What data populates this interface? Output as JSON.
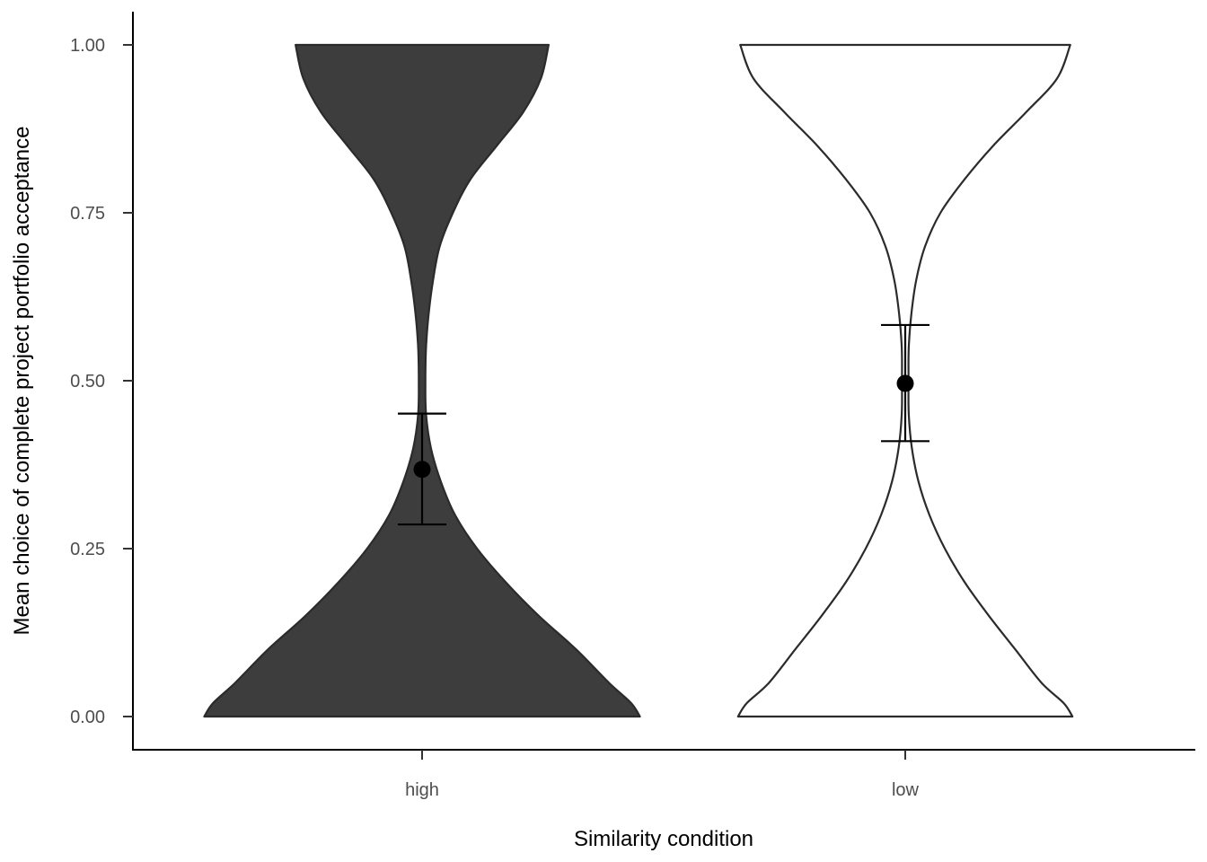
{
  "chart_data": {
    "type": "violin",
    "title": "",
    "xlabel": "Similarity condition",
    "ylabel": "Mean choice of complete project portfolio acceptance",
    "ylim": [
      0,
      1
    ],
    "y_ticks": [
      "0.00",
      "0.25",
      "0.50",
      "0.75",
      "1.00"
    ],
    "categories": [
      "high",
      "low"
    ],
    "series": [
      {
        "category": "high",
        "fill": "#3d3d3d",
        "outline": "#2b2b2b",
        "mean": 0.368,
        "ci_lower": 0.286,
        "ci_upper": 0.451,
        "density_profile": {
          "y": [
            0.0,
            0.02,
            0.05,
            0.1,
            0.15,
            0.2,
            0.25,
            0.3,
            0.35,
            0.4,
            0.45,
            0.5,
            0.55,
            0.6,
            0.65,
            0.7,
            0.75,
            0.8,
            0.85,
            0.9,
            0.95,
            1.0
          ],
          "relative_width": [
            0.99,
            0.95,
            0.85,
            0.7,
            0.53,
            0.38,
            0.25,
            0.15,
            0.085,
            0.04,
            0.018,
            0.015,
            0.018,
            0.03,
            0.05,
            0.08,
            0.14,
            0.22,
            0.34,
            0.46,
            0.54,
            0.575
          ]
        }
      },
      {
        "category": "low",
        "fill": "#ffffff",
        "outline": "#2b2b2b",
        "mean": 0.496,
        "ci_lower": 0.41,
        "ci_upper": 0.583,
        "density_profile": {
          "y": [
            0.0,
            0.02,
            0.05,
            0.1,
            0.15,
            0.2,
            0.25,
            0.3,
            0.35,
            0.4,
            0.45,
            0.5,
            0.55,
            0.6,
            0.65,
            0.7,
            0.75,
            0.8,
            0.85,
            0.9,
            0.95,
            1.0
          ],
          "relative_width": [
            0.76,
            0.72,
            0.62,
            0.5,
            0.38,
            0.27,
            0.18,
            0.11,
            0.06,
            0.03,
            0.016,
            0.015,
            0.016,
            0.028,
            0.05,
            0.09,
            0.16,
            0.27,
            0.4,
            0.55,
            0.69,
            0.75
          ]
        }
      }
    ],
    "grid": false,
    "legend": "none"
  }
}
